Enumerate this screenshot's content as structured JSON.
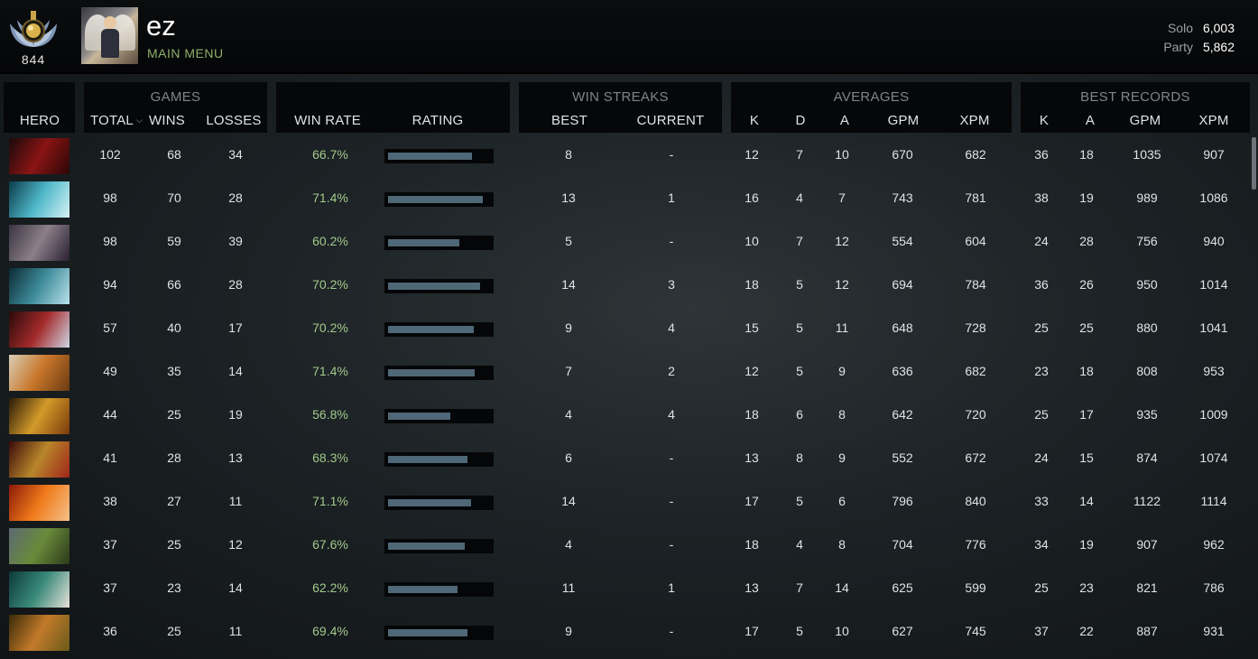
{
  "profile": {
    "medal_number": "844",
    "username": "ez",
    "subtitle": "MAIN MENU",
    "solo_label": "Solo",
    "solo_value": "6,003",
    "party_label": "Party",
    "party_value": "5,862"
  },
  "table": {
    "groups": {
      "games": "GAMES",
      "win_streaks": "WIN STREAKS",
      "averages": "AVERAGES",
      "best_records": "BEST RECORDS"
    },
    "columns": {
      "hero": "HERO",
      "total": "TOTAL",
      "wins": "WINS",
      "losses": "LOSSES",
      "win_rate": "WIN RATE",
      "rating": "RATING",
      "streak_best": "BEST",
      "streak_current": "CURRENT",
      "avg_k": "K",
      "avg_d": "D",
      "avg_a": "A",
      "avg_gpm": "GPM",
      "avg_xpm": "XPM",
      "best_k": "K",
      "best_a": "A",
      "best_gpm": "GPM",
      "best_xpm": "XPM"
    },
    "sorted_column_icon": "chevron-down-icon",
    "rating_bar_color": "#4f6878",
    "win_rate_color": "#a3c98a",
    "rows": [
      {
        "hero_icon": "hero-portrait-dark-red",
        "total": "102",
        "wins": "68",
        "losses": "34",
        "win_rate": "66.7%",
        "rating": 0.82,
        "best_streak": "8",
        "current_streak": "-",
        "k": "12",
        "d": "7",
        "a": "10",
        "gpm": "670",
        "xpm": "682",
        "best_k": "36",
        "best_a": "18",
        "best_gpm": "1035",
        "best_xpm": "907"
      },
      {
        "hero_icon": "hero-portrait-cyan",
        "total": "98",
        "wins": "70",
        "losses": "28",
        "win_rate": "71.4%",
        "rating": 0.93,
        "best_streak": "13",
        "current_streak": "1",
        "k": "16",
        "d": "4",
        "a": "7",
        "gpm": "743",
        "xpm": "781",
        "best_k": "38",
        "best_a": "19",
        "best_gpm": "989",
        "best_xpm": "1086"
      },
      {
        "hero_icon": "hero-portrait-grey-purple",
        "total": "98",
        "wins": "59",
        "losses": "39",
        "win_rate": "60.2%",
        "rating": 0.7,
        "best_streak": "5",
        "current_streak": "-",
        "k": "10",
        "d": "7",
        "a": "12",
        "gpm": "554",
        "xpm": "604",
        "best_k": "24",
        "best_a": "28",
        "best_gpm": "756",
        "best_xpm": "940"
      },
      {
        "hero_icon": "hero-portrait-teal",
        "total": "94",
        "wins": "66",
        "losses": "28",
        "win_rate": "70.2%",
        "rating": 0.9,
        "best_streak": "14",
        "current_streak": "3",
        "k": "18",
        "d": "5",
        "a": "12",
        "gpm": "694",
        "xpm": "784",
        "best_k": "36",
        "best_a": "26",
        "best_gpm": "950",
        "best_xpm": "1014"
      },
      {
        "hero_icon": "hero-portrait-red-horned",
        "total": "57",
        "wins": "40",
        "losses": "17",
        "win_rate": "70.2%",
        "rating": 0.84,
        "best_streak": "9",
        "current_streak": "4",
        "k": "15",
        "d": "5",
        "a": "11",
        "gpm": "648",
        "xpm": "728",
        "best_k": "25",
        "best_a": "25",
        "best_gpm": "880",
        "best_xpm": "1041"
      },
      {
        "hero_icon": "hero-portrait-orange-beast",
        "total": "49",
        "wins": "35",
        "losses": "14",
        "win_rate": "71.4%",
        "rating": 0.85,
        "best_streak": "7",
        "current_streak": "2",
        "k": "12",
        "d": "5",
        "a": "9",
        "gpm": "636",
        "xpm": "682",
        "best_k": "23",
        "best_a": "18",
        "best_gpm": "808",
        "best_xpm": "953"
      },
      {
        "hero_icon": "hero-portrait-gold-armor",
        "total": "44",
        "wins": "25",
        "losses": "19",
        "win_rate": "56.8%",
        "rating": 0.61,
        "best_streak": "4",
        "current_streak": "4",
        "k": "18",
        "d": "6",
        "a": "8",
        "gpm": "642",
        "xpm": "720",
        "best_k": "25",
        "best_a": "17",
        "best_gpm": "935",
        "best_xpm": "1009"
      },
      {
        "hero_icon": "hero-portrait-gold-red",
        "total": "41",
        "wins": "28",
        "losses": "13",
        "win_rate": "68.3%",
        "rating": 0.78,
        "best_streak": "6",
        "current_streak": "-",
        "k": "13",
        "d": "8",
        "a": "9",
        "gpm": "552",
        "xpm": "672",
        "best_k": "24",
        "best_a": "15",
        "best_gpm": "874",
        "best_xpm": "1074"
      },
      {
        "hero_icon": "hero-portrait-fire",
        "total": "38",
        "wins": "27",
        "losses": "11",
        "win_rate": "71.1%",
        "rating": 0.81,
        "best_streak": "14",
        "current_streak": "-",
        "k": "17",
        "d": "5",
        "a": "6",
        "gpm": "796",
        "xpm": "840",
        "best_k": "33",
        "best_a": "14",
        "best_gpm": "1122",
        "best_xpm": "1114"
      },
      {
        "hero_icon": "hero-portrait-green-orc",
        "total": "37",
        "wins": "25",
        "losses": "12",
        "win_rate": "67.6%",
        "rating": 0.75,
        "best_streak": "4",
        "current_streak": "-",
        "k": "18",
        "d": "4",
        "a": "8",
        "gpm": "704",
        "xpm": "776",
        "best_k": "34",
        "best_a": "19",
        "best_gpm": "907",
        "best_xpm": "962"
      },
      {
        "hero_icon": "hero-portrait-teal-dwarf",
        "total": "37",
        "wins": "23",
        "losses": "14",
        "win_rate": "62.2%",
        "rating": 0.68,
        "best_streak": "11",
        "current_streak": "1",
        "k": "13",
        "d": "7",
        "a": "14",
        "gpm": "625",
        "xpm": "599",
        "best_k": "25",
        "best_a": "23",
        "best_gpm": "821",
        "best_xpm": "786"
      },
      {
        "hero_icon": "hero-portrait-monkey",
        "total": "36",
        "wins": "25",
        "losses": "11",
        "win_rate": "69.4%",
        "rating": 0.78,
        "best_streak": "9",
        "current_streak": "-",
        "k": "17",
        "d": "5",
        "a": "10",
        "gpm": "627",
        "xpm": "745",
        "best_k": "37",
        "best_a": "22",
        "best_gpm": "887",
        "best_xpm": "931"
      }
    ]
  }
}
